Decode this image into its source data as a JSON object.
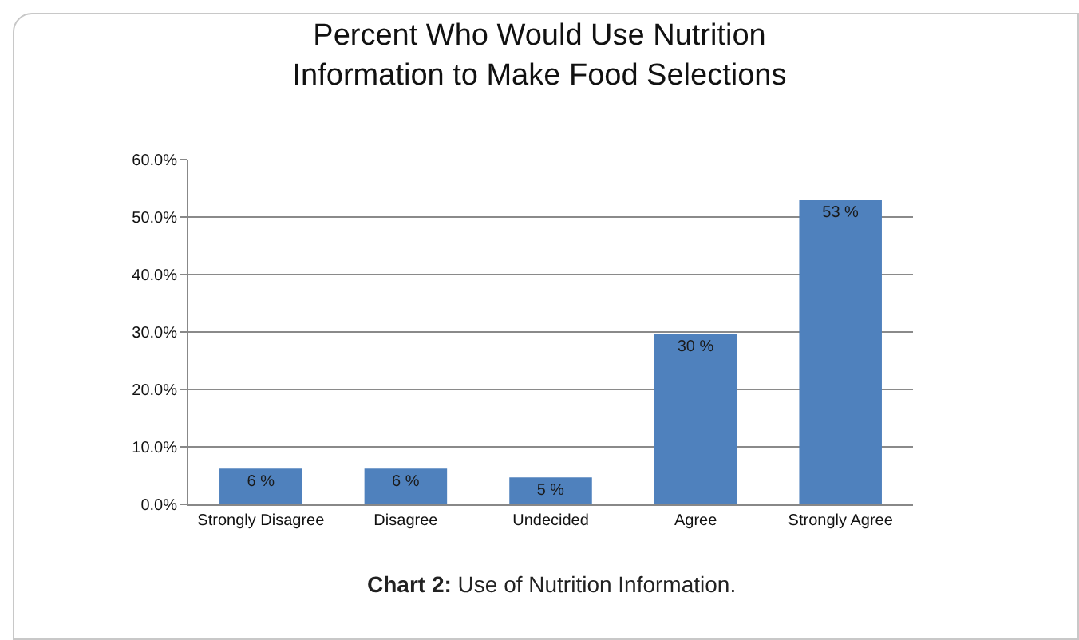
{
  "chart_data": {
    "type": "bar",
    "title": "Percent Who Would Use Nutrition Information to Make Food Selections",
    "categories": [
      "Strongly Disagree",
      "Disagree",
      "Undecided",
      "Agree",
      "Strongly Agree"
    ],
    "values": [
      6.2,
      6.2,
      4.7,
      29.7,
      53.0
    ],
    "value_labels": [
      "6 %",
      "6 %",
      "5 %",
      "30 %",
      "53 %"
    ],
    "color": "#4f81bd",
    "ylim": [
      0,
      60
    ],
    "yticks": [
      {
        "value": 0,
        "label": "0.0%"
      },
      {
        "value": 10,
        "label": "10.0%"
      },
      {
        "value": 20,
        "label": "20.0%"
      },
      {
        "value": 30,
        "label": "30.0%"
      },
      {
        "value": 40,
        "label": "40.0%"
      },
      {
        "value": 50,
        "label": "50.0%"
      },
      {
        "value": 60,
        "label": "60.0%"
      }
    ],
    "grid": "y",
    "annotations": [
      "Chart 2: Use of Nutrition Information."
    ]
  }
}
